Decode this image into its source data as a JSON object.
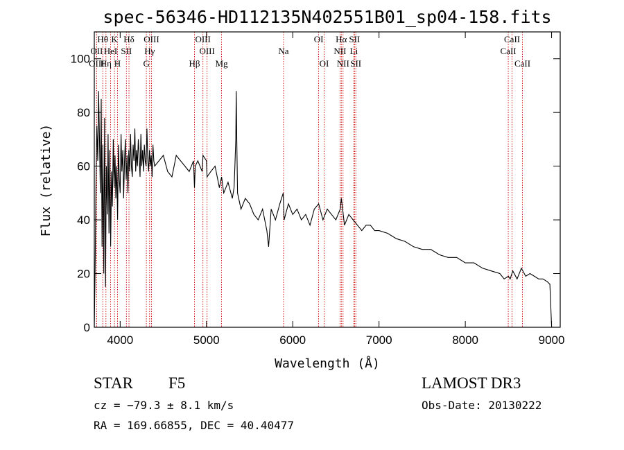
{
  "chart_data": {
    "type": "line",
    "title": "spec-56346-HD112135N402551B01_sp04-158.fits",
    "xlabel": "Wavelength (Å)",
    "ylabel": "Flux (relative)",
    "xlim": [
      3700,
      9100
    ],
    "ylim": [
      0,
      110
    ],
    "xticks": [
      4000,
      5000,
      6000,
      7000,
      8000,
      9000
    ],
    "yticks": [
      0,
      20,
      40,
      60,
      80,
      100
    ],
    "grid": false,
    "series": [
      {
        "name": "flux",
        "x": [
          3700,
          3710,
          3720,
          3730,
          3740,
          3750,
          3760,
          3770,
          3780,
          3790,
          3800,
          3810,
          3820,
          3830,
          3840,
          3850,
          3860,
          3870,
          3880,
          3890,
          3900,
          3910,
          3920,
          3930,
          3940,
          3950,
          3960,
          3970,
          3980,
          3990,
          4000,
          4010,
          4020,
          4030,
          4040,
          4050,
          4060,
          4070,
          4080,
          4090,
          4100,
          4110,
          4120,
          4130,
          4140,
          4150,
          4160,
          4170,
          4180,
          4190,
          4200,
          4210,
          4220,
          4230,
          4240,
          4250,
          4260,
          4270,
          4280,
          4290,
          4300,
          4310,
          4320,
          4330,
          4340,
          4350,
          4360,
          4370,
          4380,
          4390,
          4400,
          4450,
          4500,
          4550,
          4600,
          4650,
          4700,
          4750,
          4800,
          4850,
          4861,
          4870,
          4900,
          4950,
          4960,
          5000,
          5007,
          5050,
          5100,
          5150,
          5175,
          5200,
          5250,
          5300,
          5320,
          5330,
          5340,
          5345,
          5350,
          5360,
          5400,
          5450,
          5500,
          5550,
          5600,
          5650,
          5700,
          5720,
          5750,
          5800,
          5850,
          5890,
          5900,
          5950,
          6000,
          6050,
          6100,
          6150,
          6200,
          6250,
          6300,
          6350,
          6400,
          6450,
          6500,
          6550,
          6563,
          6600,
          6650,
          6700,
          6750,
          6800,
          6850,
          6900,
          6950,
          7000,
          7100,
          7200,
          7300,
          7400,
          7500,
          7600,
          7700,
          7800,
          7900,
          8000,
          8100,
          8200,
          8300,
          8400,
          8450,
          8500,
          8520,
          8550,
          8600,
          8650,
          8700,
          8750,
          8800,
          8850,
          8900,
          8950,
          8980,
          9000
        ],
        "values": [
          0,
          22,
          55,
          75,
          62,
          88,
          70,
          50,
          85,
          30,
          68,
          20,
          78,
          15,
          60,
          42,
          72,
          35,
          66,
          30,
          58,
          45,
          70,
          52,
          64,
          48,
          60,
          40,
          68,
          55,
          50,
          72,
          58,
          66,
          48,
          62,
          70,
          55,
          64,
          50,
          66,
          58,
          72,
          60,
          56,
          68,
          62,
          74,
          58,
          66,
          60,
          70,
          64,
          56,
          72,
          60,
          66,
          58,
          68,
          62,
          60,
          74,
          62,
          58,
          66,
          60,
          64,
          56,
          68,
          62,
          60,
          62,
          64,
          58,
          56,
          64,
          62,
          60,
          58,
          62,
          52,
          60,
          62,
          58,
          64,
          62,
          56,
          58,
          60,
          52,
          56,
          50,
          54,
          48,
          52,
          60,
          70,
          88,
          74,
          50,
          44,
          48,
          46,
          42,
          40,
          44,
          36,
          30,
          44,
          40,
          46,
          50,
          40,
          46,
          42,
          44,
          40,
          42,
          38,
          44,
          46,
          40,
          44,
          42,
          40,
          44,
          48,
          38,
          42,
          40,
          38,
          36,
          38,
          38,
          36,
          36,
          35,
          33,
          32,
          30,
          29,
          29,
          27,
          26,
          26,
          24,
          24,
          22,
          21,
          20,
          18,
          19,
          18,
          21,
          18,
          22,
          19,
          20,
          19,
          18,
          18,
          17,
          16,
          0
        ]
      }
    ],
    "line_markers": [
      {
        "name": "Hθ",
        "wavelength": 3798,
        "row": 1
      },
      {
        "name": "OII",
        "wavelength": 3727,
        "row": 2
      },
      {
        "name": "OIII",
        "wavelength": 3727,
        "row": 3
      },
      {
        "name": "Hη",
        "wavelength": 3835,
        "row": 3
      },
      {
        "name": "HeI",
        "wavelength": 3889,
        "row": 2
      },
      {
        "name": "K",
        "wavelength": 3934,
        "row": 1
      },
      {
        "name": "SII",
        "wavelength": 4072,
        "row": 2
      },
      {
        "name": "H",
        "wavelength": 3969,
        "row": 3
      },
      {
        "name": "Hδ",
        "wavelength": 4102,
        "row": 1
      },
      {
        "name": "OIII",
        "wavelength": 4363,
        "row": 1
      },
      {
        "name": "Hγ",
        "wavelength": 4341,
        "row": 2
      },
      {
        "name": "G",
        "wavelength": 4304,
        "row": 3
      },
      {
        "name": "OIII",
        "wavelength": 4959,
        "row": 1
      },
      {
        "name": "OIII",
        "wavelength": 5007,
        "row": 2
      },
      {
        "name": "Hβ",
        "wavelength": 4861,
        "row": 3
      },
      {
        "name": "Mg",
        "wavelength": 5175,
        "row": 3
      },
      {
        "name": "Na",
        "wavelength": 5893,
        "row": 2
      },
      {
        "name": "OI",
        "wavelength": 6300,
        "row": 1
      },
      {
        "name": "OI",
        "wavelength": 6364,
        "row": 3
      },
      {
        "name": "Hα",
        "wavelength": 6563,
        "row": 1
      },
      {
        "name": "SII",
        "wavelength": 6716,
        "row": 1
      },
      {
        "name": "NII",
        "wavelength": 6548,
        "row": 2
      },
      {
        "name": "Li",
        "wavelength": 6708,
        "row": 2
      },
      {
        "name": "NII",
        "wavelength": 6583,
        "row": 3
      },
      {
        "name": "SII",
        "wavelength": 6731,
        "row": 3
      },
      {
        "name": "CaII",
        "wavelength": 8542,
        "row": 1
      },
      {
        "name": "CaII",
        "wavelength": 8498,
        "row": 2
      },
      {
        "name": "CaII",
        "wavelength": 8662,
        "row": 3
      }
    ]
  },
  "info": {
    "object_class": "STAR",
    "subclass": "F5",
    "survey": "LAMOST DR3",
    "redshift": "cz = −79.3 ± 8.1 km/s",
    "obs_date": "Obs-Date: 20130222",
    "coordinates": "RA = 169.66855, DEC =  40.40477"
  },
  "colors": {
    "axis": "#000000",
    "spectrum": "#000000",
    "marker_line": "#cc0000"
  }
}
